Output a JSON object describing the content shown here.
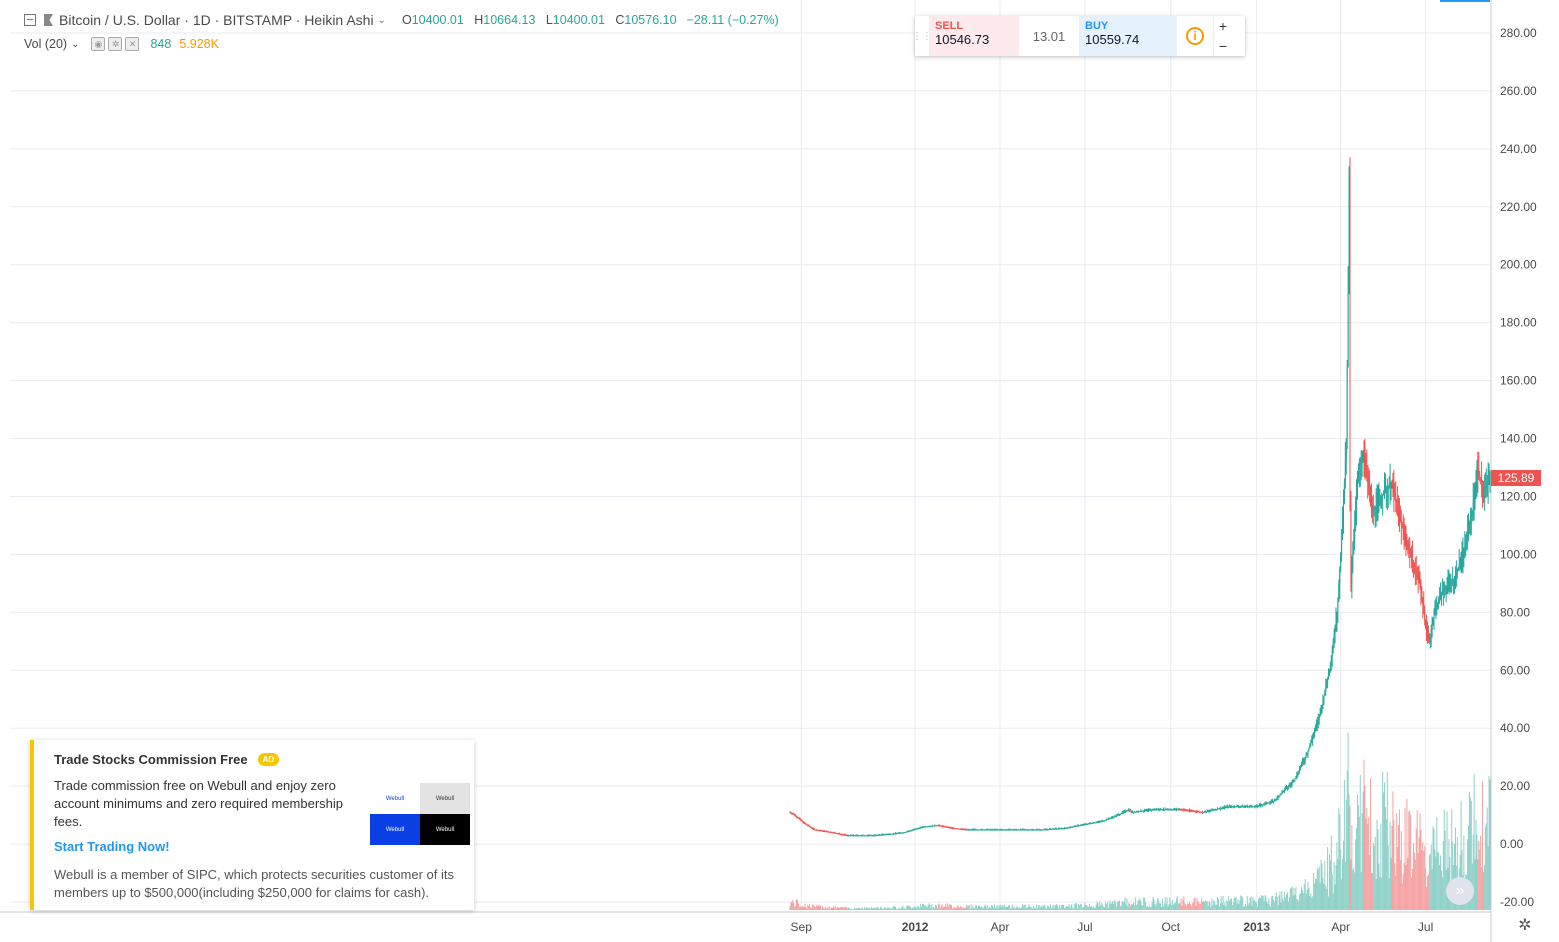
{
  "legend": {
    "symbol": "Bitcoin / U.S. Dollar · 1D · BITSTAMP · Heikin Ashi",
    "open_label": "O",
    "open": "10400.01",
    "high_label": "H",
    "high": "10664.13",
    "low_label": "L",
    "low": "10400.01",
    "close_label": "C",
    "close": "10576.10",
    "change": "−28.11 (−0.27%)"
  },
  "volume": {
    "label": "Vol (20)",
    "value": "848",
    "ma": "5.928K"
  },
  "trade": {
    "sell_label": "SELL",
    "sell_price": "10546.73",
    "spread": "13.01",
    "buy_label": "BUY",
    "buy_price": "10559.74",
    "plus": "+",
    "minus": "−"
  },
  "current_price": "125.89",
  "ad": {
    "title": "Trade Stocks Commission Free",
    "badge": "AD",
    "description": "Trade commission free on Webull and enjoy zero account minimums and zero required membership fees.",
    "cta": "Start Trading Now!",
    "footer": "Webull is a member of SIPC, which protects securities customer of its members up to $500,000(including $250,000 for claims for cash).",
    "tile_text": "Webull"
  },
  "colors": {
    "up": "#26a69a",
    "down": "#ef5350",
    "vol_up": "#8fd1c8",
    "vol_down": "#f5a3a3",
    "grid": "#e8ebf0"
  },
  "chart_data": {
    "type": "line",
    "title": "Bitcoin / U.S. Dollar · 1D · BITSTAMP · Heikin Ashi",
    "chart_style": "candlestick",
    "x_ticks": [
      "Sep",
      "2012",
      "Apr",
      "Jul",
      "Oct",
      "2013",
      "Apr",
      "Jul"
    ],
    "y_ticks": [
      "280.00",
      "260.00",
      "240.00",
      "220.00",
      "200.00",
      "180.00",
      "160.00",
      "140.00",
      "120.00",
      "100.00",
      "80.00",
      "60.00",
      "40.00",
      "20.00",
      "0.00",
      "-20.00"
    ],
    "ylim": [
      -20,
      280
    ],
    "x_range": [
      "2011-08-20",
      "2013-09-08"
    ],
    "series": [
      {
        "x": [
          "2011-08-20",
          "2011-08-25",
          "2011-09-05",
          "2011-09-15",
          "2011-10-05",
          "2011-10-20",
          "2011-11-18",
          "2011-12-05",
          "2011-12-20",
          "2012-01-10",
          "2012-01-25",
          "2012-02-10",
          "2012-02-25",
          "2012-03-15",
          "2012-04-10",
          "2012-05-15",
          "2012-06-10",
          "2012-06-25",
          "2012-07-20",
          "2012-08-05",
          "2012-08-17",
          "2012-08-20",
          "2012-09-15",
          "2012-10-10",
          "2012-11-05",
          "2012-12-01",
          "2013-01-01",
          "2013-01-20",
          "2013-02-10",
          "2013-02-25",
          "2013-03-10",
          "2013-03-20",
          "2013-03-28",
          "2013-04-03",
          "2013-04-07",
          "2013-04-09",
          "2013-04-10",
          "2013-04-11",
          "2013-04-12",
          "2013-04-16",
          "2013-04-20",
          "2013-04-25",
          "2013-05-05",
          "2013-05-15",
          "2013-05-25",
          "2013-06-05",
          "2013-06-15",
          "2013-06-25",
          "2013-07-01",
          "2013-07-05",
          "2013-07-10",
          "2013-07-20",
          "2013-08-01",
          "2013-08-10",
          "2013-08-20",
          "2013-08-25",
          "2013-09-01",
          "2013-09-08"
        ],
        "values": [
          11,
          10,
          7,
          5,
          4,
          3,
          3,
          3.5,
          4,
          6,
          6.5,
          5.5,
          5,
          5,
          5,
          5,
          5.5,
          6.5,
          8,
          10,
          12,
          11,
          12,
          12,
          11,
          13,
          13,
          15,
          22,
          32,
          45,
          60,
          80,
          110,
          140,
          190,
          230,
          120,
          90,
          110,
          130,
          135,
          115,
          120,
          125,
          110,
          100,
          90,
          75,
          70,
          80,
          88,
          92,
          100,
          115,
          130,
          122,
          125.89
        ]
      }
    ],
    "volume_note": "relative volume bars at bottom of chart"
  }
}
